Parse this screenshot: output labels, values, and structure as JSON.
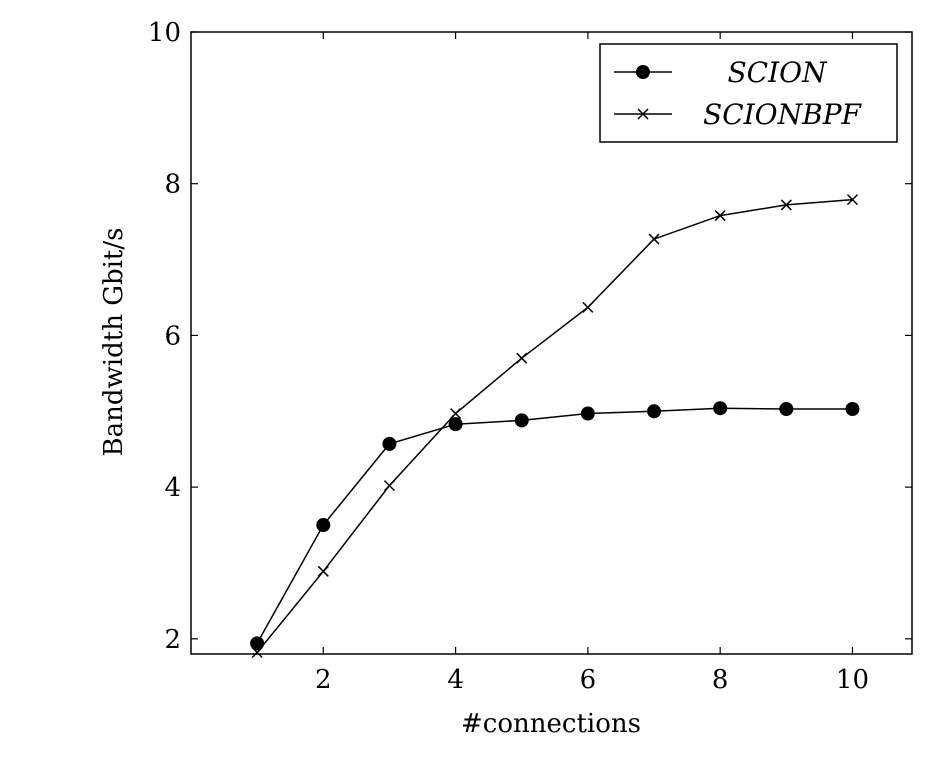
{
  "chart_data": {
    "type": "line",
    "xlabel": "#connections",
    "ylabel": "Bandwidth Gbit/s",
    "xlim": [
      0.0,
      10.9
    ],
    "ylim": [
      1.8,
      10
    ],
    "xticks": [
      2,
      4,
      6,
      8,
      10
    ],
    "yticks": [
      2,
      4,
      6,
      8,
      10
    ],
    "grid": false,
    "legend_position": "top-right",
    "series": [
      {
        "name": "SCION",
        "marker": "circle",
        "color": "#000000",
        "x": [
          1,
          2,
          3,
          4,
          5,
          6,
          7,
          8,
          9,
          10
        ],
        "y": [
          1.94,
          3.5,
          4.57,
          4.83,
          4.88,
          4.97,
          5.0,
          5.04,
          5.03,
          5.03
        ]
      },
      {
        "name": "SCIONBPF",
        "marker": "cross",
        "color": "#000000",
        "x": [
          1,
          2,
          3,
          4,
          5,
          6,
          7,
          8,
          9,
          10
        ],
        "y": [
          1.82,
          2.89,
          4.02,
          4.97,
          5.7,
          6.37,
          7.27,
          7.58,
          7.72,
          7.79
        ]
      }
    ]
  }
}
